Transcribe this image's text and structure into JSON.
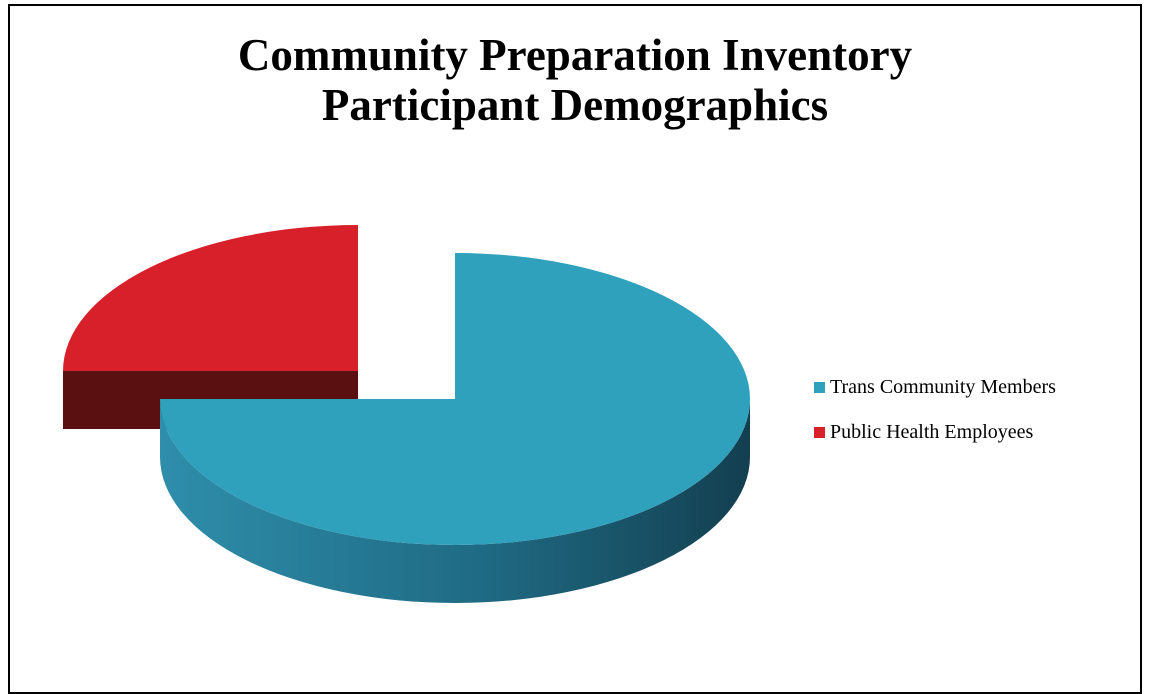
{
  "chart_data": {
    "type": "pie",
    "title": [
      "Community Preparation Inventory",
      "Participant Demographics"
    ],
    "three_d": true,
    "exploded": true,
    "slices": [
      {
        "label": "Trans Community Members",
        "value": 75,
        "color": "#2fa1bd"
      },
      {
        "label": "Public Health Employees",
        "value": 25,
        "color": "#d7202a"
      }
    ],
    "legend_position": "right"
  }
}
